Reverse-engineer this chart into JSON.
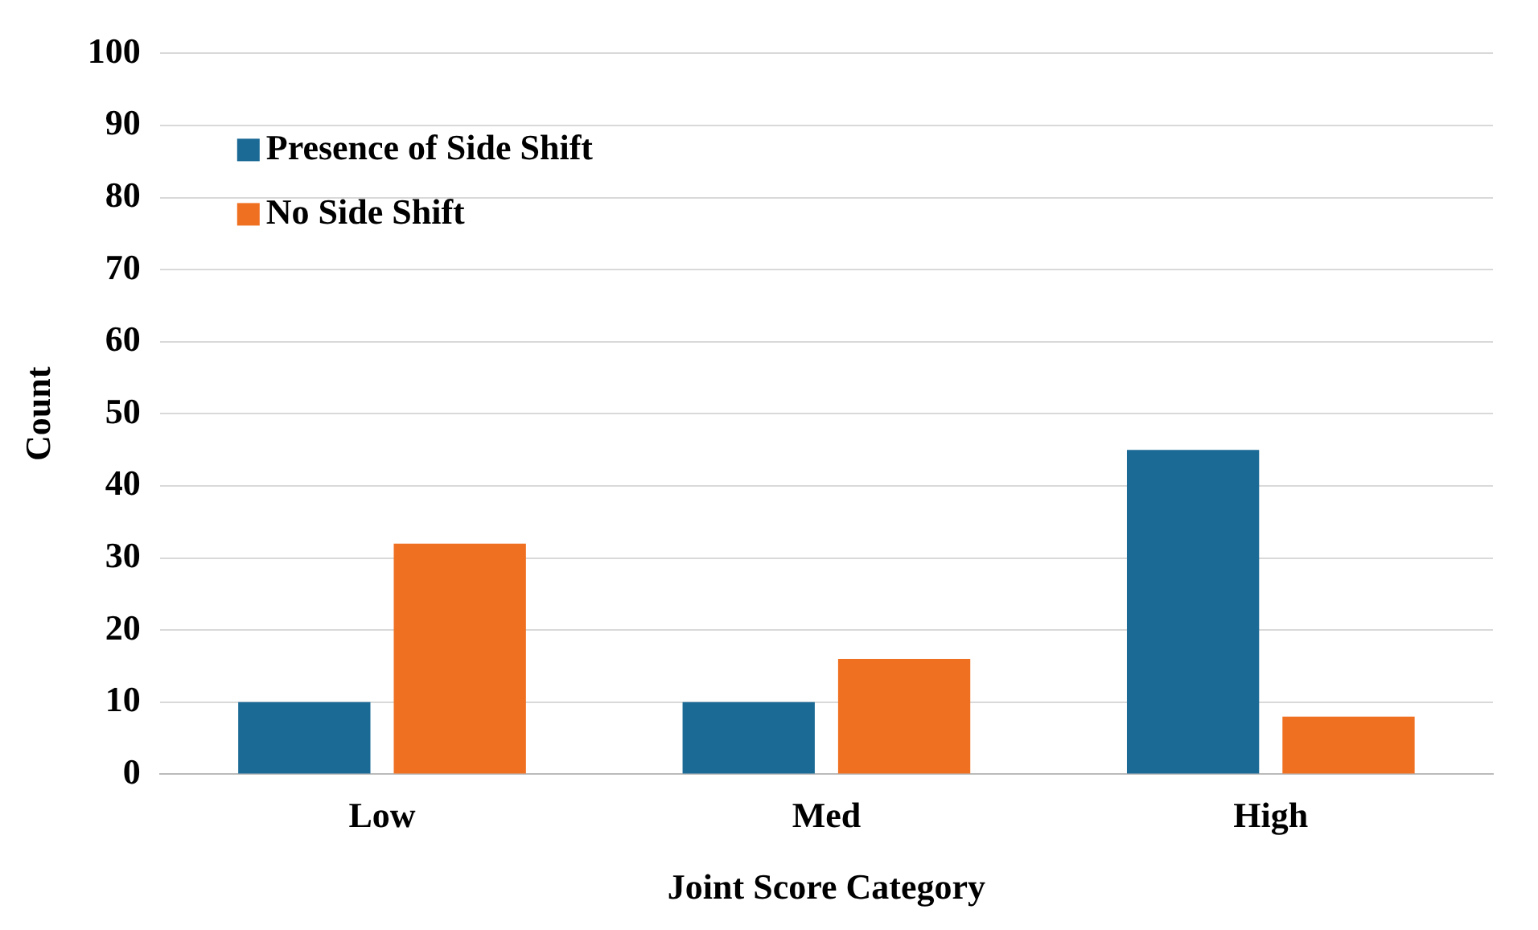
{
  "chart_data": {
    "type": "bar",
    "xlabel": "Joint Score Category",
    "ylabel": "Count",
    "categories": [
      "Low",
      "Med",
      "High"
    ],
    "series": [
      {
        "name": "Presence of Side Shift",
        "color": "#1b6a96",
        "values": [
          10,
          10,
          45
        ]
      },
      {
        "name": "No Side Shift",
        "color": "#f07022",
        "values": [
          32,
          16,
          8
        ]
      }
    ],
    "ylim": [
      0,
      100
    ],
    "yticks": [
      0,
      10,
      20,
      30,
      40,
      50,
      60,
      70,
      80,
      90,
      100
    ],
    "grid": "y",
    "legend": "top left"
  }
}
